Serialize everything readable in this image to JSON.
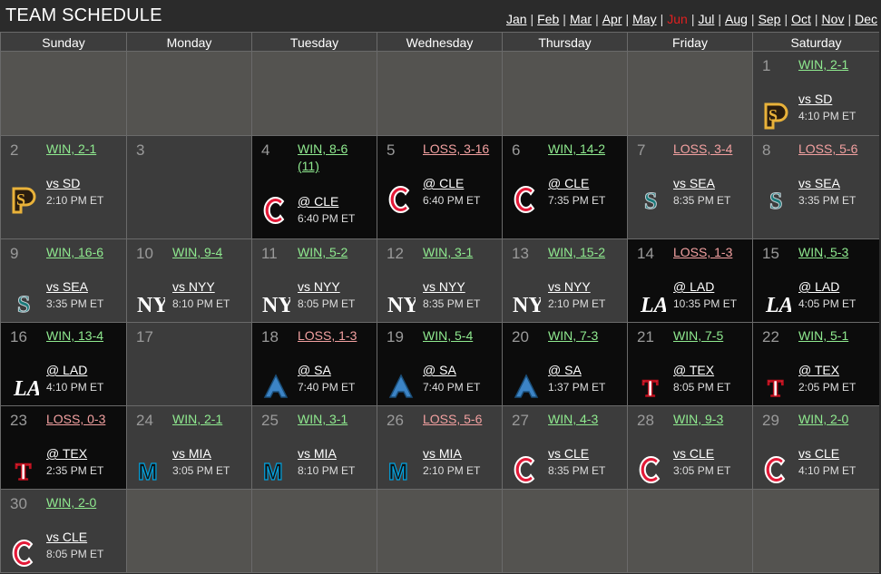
{
  "title": "TEAM SCHEDULE",
  "months": [
    "Jan",
    "Feb",
    "Mar",
    "Apr",
    "May",
    "Jun",
    "Jul",
    "Aug",
    "Sep",
    "Oct",
    "Nov",
    "Dec"
  ],
  "current_month": "Jun",
  "days_of_week": [
    "Sunday",
    "Monday",
    "Tuesday",
    "Wednesday",
    "Thursday",
    "Friday",
    "Saturday"
  ],
  "colors": {
    "win": "#8fea8f",
    "loss": "#f2a0a0",
    "current_month": "#e02020",
    "home_bg": "#3c3c3c",
    "away_bg": "#0c0c0c",
    "empty_bg": "#545350"
  },
  "weeks": [
    [
      null,
      null,
      null,
      null,
      null,
      null,
      {
        "day": "1",
        "result": "WIN, 2-1",
        "outcome": "win",
        "opponent": "vs SD",
        "time": "4:10 PM ET",
        "logo": "padres-logo",
        "venue": "home"
      }
    ],
    [
      {
        "day": "2",
        "result": "WIN, 2-1",
        "outcome": "win",
        "opponent": "vs SD",
        "time": "2:10 PM ET",
        "logo": "padres-logo",
        "venue": "home"
      },
      {
        "day": "3",
        "venue": "off"
      },
      {
        "day": "4",
        "result": "WIN, 8-6",
        "extra": "(11)",
        "outcome": "win",
        "opponent": "@ CLE",
        "time": "6:40 PM ET",
        "logo": "guardians-logo",
        "venue": "away"
      },
      {
        "day": "5",
        "result": "LOSS, 3-16",
        "outcome": "loss",
        "opponent": "@ CLE",
        "time": "6:40 PM ET",
        "logo": "guardians-logo",
        "venue": "away"
      },
      {
        "day": "6",
        "result": "WIN, 14-2",
        "outcome": "win",
        "opponent": "@ CLE",
        "time": "7:35 PM ET",
        "logo": "guardians-logo",
        "venue": "away"
      },
      {
        "day": "7",
        "result": "LOSS, 3-4",
        "outcome": "loss",
        "opponent": "vs SEA",
        "time": "8:35 PM ET",
        "logo": "mariners-logo",
        "venue": "home"
      },
      {
        "day": "8",
        "result": "LOSS, 5-6",
        "outcome": "loss",
        "opponent": "vs SEA",
        "time": "3:35 PM ET",
        "logo": "mariners-logo",
        "venue": "home"
      }
    ],
    [
      {
        "day": "9",
        "result": "WIN, 16-6",
        "outcome": "win",
        "opponent": "vs SEA",
        "time": "3:35 PM ET",
        "logo": "mariners-logo",
        "venue": "home"
      },
      {
        "day": "10",
        "result": "WIN, 9-4",
        "outcome": "win",
        "opponent": "vs NYY",
        "time": "8:10 PM ET",
        "logo": "yankees-logo",
        "venue": "home"
      },
      {
        "day": "11",
        "result": "WIN, 5-2",
        "outcome": "win",
        "opponent": "vs NYY",
        "time": "8:05 PM ET",
        "logo": "yankees-logo",
        "venue": "home"
      },
      {
        "day": "12",
        "result": "WIN, 3-1",
        "outcome": "win",
        "opponent": "vs NYY",
        "time": "8:35 PM ET",
        "logo": "yankees-logo",
        "venue": "home"
      },
      {
        "day": "13",
        "result": "WIN, 15-2",
        "outcome": "win",
        "opponent": "vs NYY",
        "time": "2:10 PM ET",
        "logo": "yankees-logo",
        "venue": "home"
      },
      {
        "day": "14",
        "result": "LOSS, 1-3",
        "outcome": "loss",
        "opponent": "@ LAD",
        "time": "10:35 PM ET",
        "logo": "dodgers-logo",
        "venue": "away"
      },
      {
        "day": "15",
        "result": "WIN, 5-3",
        "outcome": "win",
        "opponent": "@ LAD",
        "time": "4:05 PM ET",
        "logo": "dodgers-logo",
        "venue": "away"
      }
    ],
    [
      {
        "day": "16",
        "result": "WIN, 13-4",
        "outcome": "win",
        "opponent": "@ LAD",
        "time": "4:10 PM ET",
        "logo": "dodgers-logo",
        "venue": "away"
      },
      {
        "day": "17",
        "venue": "off"
      },
      {
        "day": "18",
        "result": "LOSS, 1-3",
        "outcome": "loss",
        "opponent": "@ SA",
        "time": "7:40 PM ET",
        "logo": "athletics-logo",
        "venue": "away"
      },
      {
        "day": "19",
        "result": "WIN, 5-4",
        "outcome": "win",
        "opponent": "@ SA",
        "time": "7:40 PM ET",
        "logo": "athletics-logo",
        "venue": "away"
      },
      {
        "day": "20",
        "result": "WIN, 7-3",
        "outcome": "win",
        "opponent": "@ SA",
        "time": "1:37 PM ET",
        "logo": "athletics-logo",
        "venue": "away"
      },
      {
        "day": "21",
        "result": "WIN, 7-5",
        "outcome": "win",
        "opponent": "@ TEX",
        "time": "8:05 PM ET",
        "logo": "rangers-logo",
        "venue": "away"
      },
      {
        "day": "22",
        "result": "WIN, 5-1",
        "outcome": "win",
        "opponent": "@ TEX",
        "time": "2:05 PM ET",
        "logo": "rangers-logo",
        "venue": "away"
      }
    ],
    [
      {
        "day": "23",
        "result": "LOSS, 0-3",
        "outcome": "loss",
        "opponent": "@ TEX",
        "time": "2:35 PM ET",
        "logo": "rangers-logo",
        "venue": "away"
      },
      {
        "day": "24",
        "result": "WIN, 2-1",
        "outcome": "win",
        "opponent": "vs MIA",
        "time": "3:05 PM ET",
        "logo": "marlins-logo",
        "venue": "home"
      },
      {
        "day": "25",
        "result": "WIN, 3-1",
        "outcome": "win",
        "opponent": "vs MIA",
        "time": "8:10 PM ET",
        "logo": "marlins-logo",
        "venue": "home"
      },
      {
        "day": "26",
        "result": "LOSS, 5-6",
        "outcome": "loss",
        "opponent": "vs MIA",
        "time": "2:10 PM ET",
        "logo": "marlins-logo",
        "venue": "home"
      },
      {
        "day": "27",
        "result": "WIN, 4-3",
        "outcome": "win",
        "opponent": "vs CLE",
        "time": "8:35 PM ET",
        "logo": "guardians-logo",
        "venue": "home"
      },
      {
        "day": "28",
        "result": "WIN, 9-3",
        "outcome": "win",
        "opponent": "vs CLE",
        "time": "3:05 PM ET",
        "logo": "guardians-logo",
        "venue": "home"
      },
      {
        "day": "29",
        "result": "WIN, 2-0",
        "outcome": "win",
        "opponent": "vs CLE",
        "time": "4:10 PM ET",
        "logo": "guardians-logo",
        "venue": "home"
      }
    ],
    [
      {
        "day": "30",
        "result": "WIN, 2-0",
        "outcome": "win",
        "opponent": "vs CLE",
        "time": "8:05 PM ET",
        "logo": "guardians-logo",
        "venue": "home"
      },
      null,
      null,
      null,
      null,
      null,
      null
    ]
  ]
}
